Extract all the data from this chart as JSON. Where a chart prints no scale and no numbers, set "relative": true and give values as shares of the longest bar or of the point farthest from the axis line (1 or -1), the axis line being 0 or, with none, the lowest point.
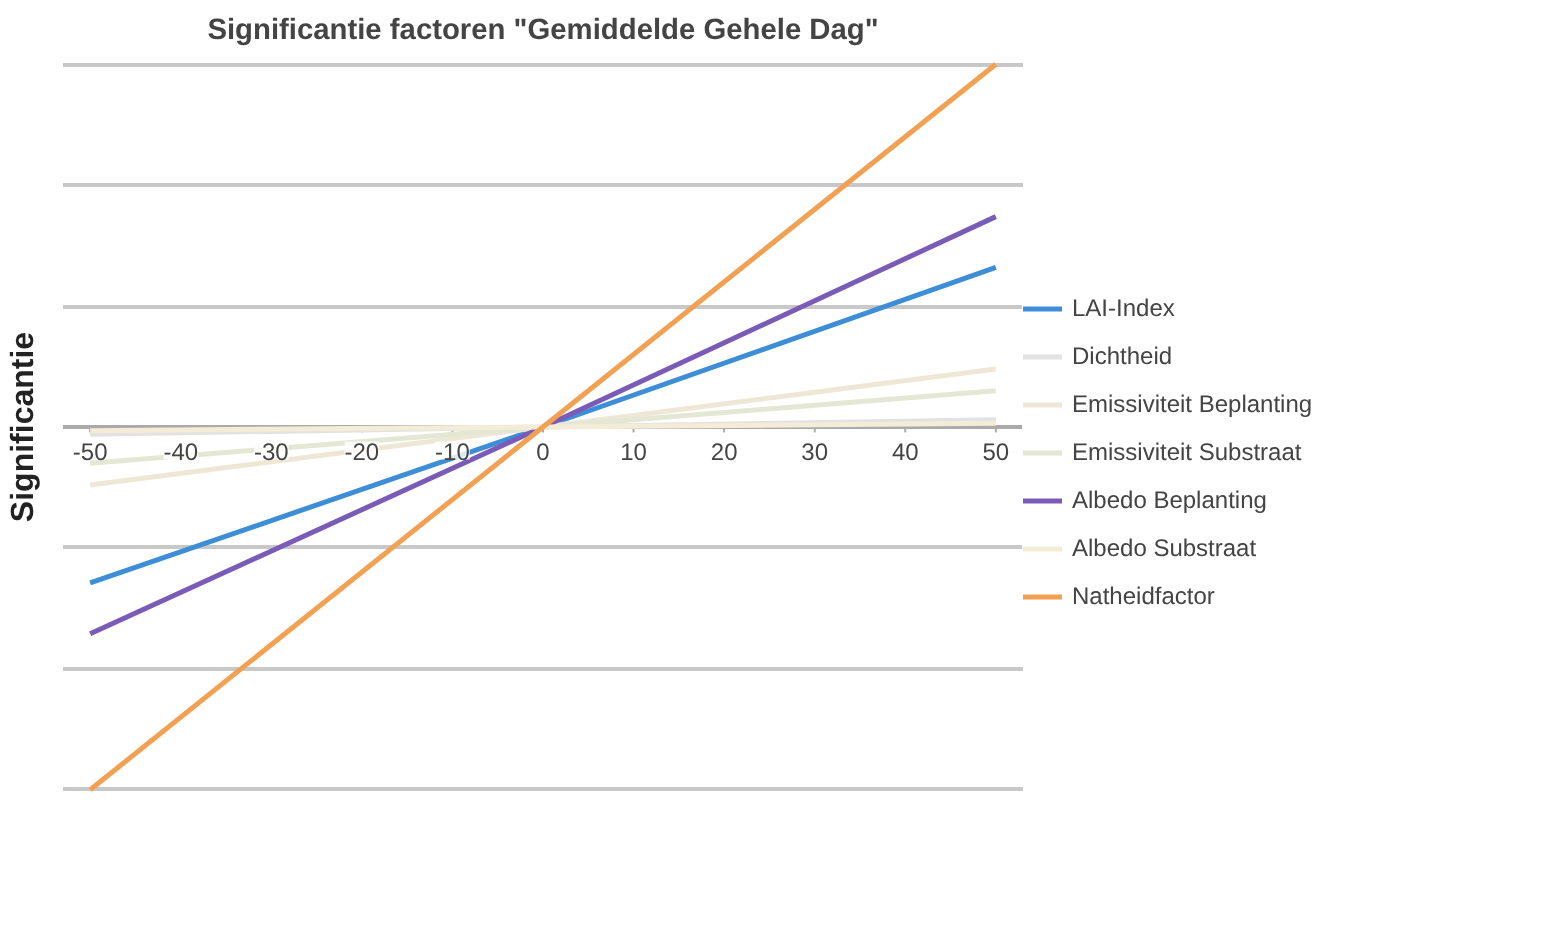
{
  "chart_data": {
    "type": "line",
    "title": "Significantie factoren \"Gemiddelde Gehele Dag\"",
    "ylabel": "Significantie",
    "relative": true,
    "x": [
      -50,
      0,
      50
    ],
    "xlim": [
      -53,
      53
    ],
    "xticks": [
      -50,
      -40,
      -30,
      -20,
      -10,
      0,
      10,
      20,
      30,
      40,
      50
    ],
    "series": [
      {
        "name": "LAI-Index",
        "color": "#3d8ed6",
        "values": [
          -0.43,
          0,
          0.44
        ]
      },
      {
        "name": "Dichtheid",
        "color": "#e2e2e2",
        "values": [
          -0.02,
          0,
          0.02
        ]
      },
      {
        "name": "Emissiviteit Beplanting",
        "color": "#efe7d6",
        "values": [
          -0.16,
          0,
          0.16
        ]
      },
      {
        "name": "Emissiviteit Substraat",
        "color": "#e4e7d4",
        "values": [
          -0.1,
          0,
          0.1
        ]
      },
      {
        "name": "Albedo Beplanting",
        "color": "#7a5cb8",
        "values": [
          -0.57,
          0,
          0.58
        ]
      },
      {
        "name": "Albedo Substraat",
        "color": "#f4ecd6",
        "values": [
          -0.01,
          0,
          0.01
        ]
      },
      {
        "name": "Natheidfactor",
        "color": "#f2a152",
        "values": [
          -1,
          0,
          1
        ]
      }
    ],
    "grid": "y",
    "legend": "right"
  }
}
